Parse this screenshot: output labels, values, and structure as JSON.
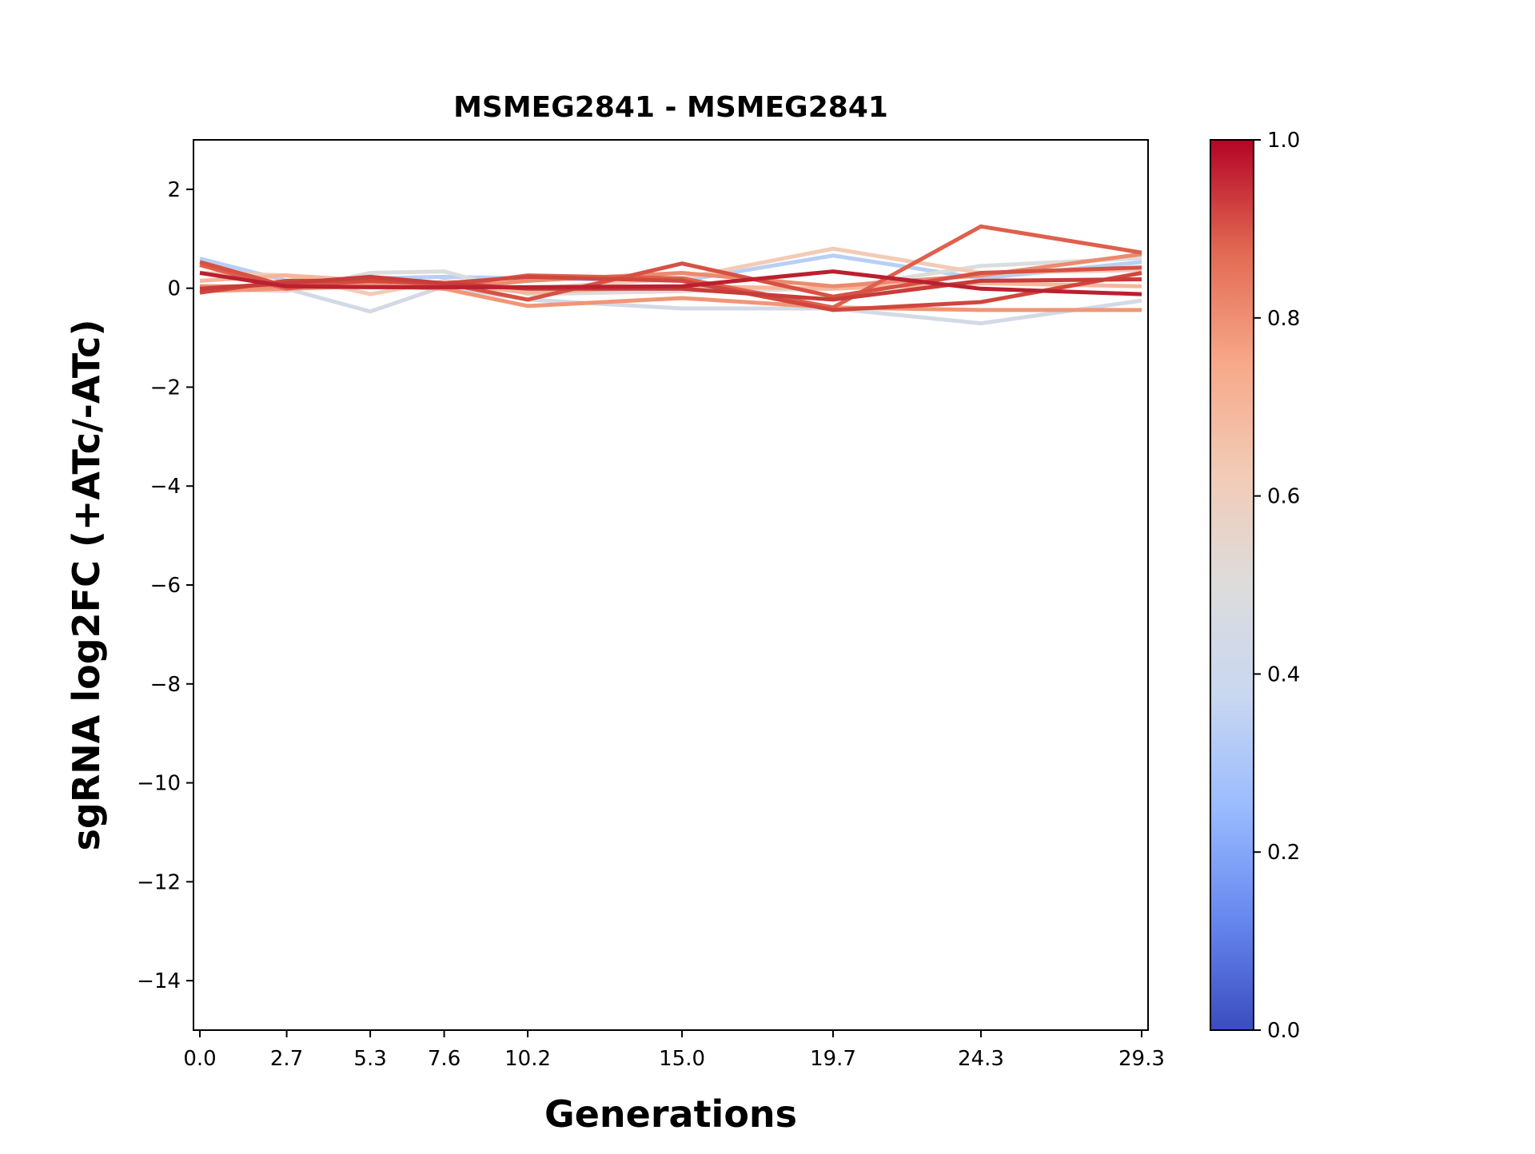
{
  "chart_data": {
    "type": "line",
    "title": "MSMEG2841 - MSMEG2841",
    "xlabel": "Generations",
    "ylabel": "sgRNA log2FC (+ATc/-ATc)",
    "x": [
      0.0,
      2.7,
      5.3,
      7.6,
      10.2,
      15.0,
      19.7,
      24.3,
      29.3
    ],
    "x_tick_labels": [
      "0.0",
      "2.7",
      "5.3",
      "7.6",
      "10.2",
      "15.0",
      "19.7",
      "24.3",
      "29.3"
    ],
    "y_ticks": [
      2,
      0,
      -2,
      -4,
      -6,
      -8,
      -10,
      -12,
      -14
    ],
    "y_tick_labels": [
      "2",
      "0",
      "−2",
      "−4",
      "−6",
      "−8",
      "−10",
      "−12",
      "−14"
    ],
    "ylim": [
      -15,
      3
    ],
    "xlim": [
      -0.2,
      29.5
    ],
    "grid": false,
    "series": [
      {
        "color_value": 0.35,
        "color": "#b8cff5",
        "values": [
          0.6,
          0.15,
          0.2,
          0.23,
          0.2,
          0.15,
          0.66,
          0.2,
          0.53
        ]
      },
      {
        "color_value": 0.45,
        "color": "#d3dae6",
        "values": [
          0.04,
          -0.01,
          -0.47,
          0.04,
          -0.23,
          -0.41,
          -0.41,
          -0.71,
          -0.25
        ]
      },
      {
        "color_value": 0.5,
        "color": "#dddcdc",
        "values": [
          -0.01,
          -0.06,
          0.31,
          0.34,
          -0.12,
          -0.06,
          -0.01,
          0.45,
          0.61
        ]
      },
      {
        "color_value": 0.62,
        "color": "#f2cbb7",
        "values": [
          0.31,
          0.26,
          -0.12,
          0.15,
          -0.01,
          0.2,
          0.8,
          0.31,
          0.37
        ]
      },
      {
        "color_value": 0.7,
        "color": "#f5b79c",
        "values": [
          0.15,
          0.26,
          0.15,
          0.1,
          -0.09,
          0.04,
          -0.01,
          0.1,
          0.04
        ]
      },
      {
        "color_value": 0.75,
        "color": "#f09677",
        "values": [
          -0.06,
          -0.01,
          0.04,
          -0.01,
          -0.36,
          -0.2,
          -0.39,
          -0.44,
          -0.44
        ]
      },
      {
        "color_value": 0.78,
        "color": "#ec8b6e",
        "values": [
          0.04,
          0.04,
          0.1,
          -0.01,
          0.15,
          0.31,
          0.04,
          0.26,
          0.69
        ]
      },
      {
        "color_value": 0.85,
        "color": "#de604d",
        "values": [
          0.47,
          -0.01,
          0.2,
          0.04,
          0.26,
          0.2,
          -0.39,
          1.25,
          0.72
        ]
      },
      {
        "color_value": 0.88,
        "color": "#d65244",
        "values": [
          0.53,
          0.04,
          0.15,
          0.1,
          -0.23,
          0.5,
          -0.17,
          0.31,
          0.42
        ]
      },
      {
        "color_value": 0.9,
        "color": "#d0473d",
        "values": [
          -0.09,
          0.15,
          0.15,
          0.1,
          0.23,
          0.15,
          -0.44,
          -0.28,
          0.31
        ]
      },
      {
        "color_value": 0.92,
        "color": "#c83c39",
        "values": [
          -0.01,
          0.1,
          0.23,
          0.1,
          -0.01,
          -0.01,
          -0.23,
          0.15,
          0.18
        ]
      },
      {
        "color_value": 0.97,
        "color": "#bb2030",
        "values": [
          0.31,
          0.04,
          0.02,
          0.02,
          0.02,
          0.04,
          0.34,
          -0.01,
          -0.12
        ]
      }
    ],
    "colorbar": {
      "range": [
        0.0,
        1.0
      ],
      "ticks": [
        0.0,
        0.2,
        0.4,
        0.6,
        0.8,
        1.0
      ],
      "tick_labels": [
        "0.0",
        "0.2",
        "0.4",
        "0.6",
        "0.8",
        "1.0"
      ],
      "colormap_stops": [
        "#3b4cc0",
        "#6788ee",
        "#9abbff",
        "#c9d7f0",
        "#dddcdc",
        "#f2cbb7",
        "#f7a889",
        "#e26952",
        "#b40426"
      ]
    }
  }
}
